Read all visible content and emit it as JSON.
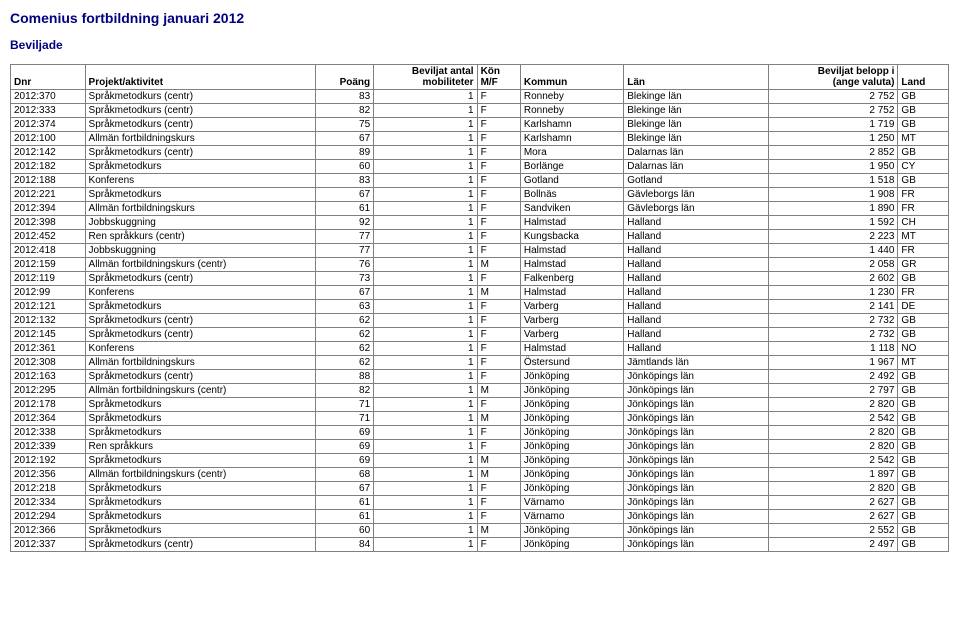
{
  "page_title": "Comenius fortbildning januari 2012",
  "section_title": "Beviljade",
  "columns": [
    {
      "key": "dnr",
      "label": "Dnr",
      "align": "left"
    },
    {
      "key": "proj",
      "label": "Projekt/aktivitet",
      "align": "left"
    },
    {
      "key": "poang",
      "label": "Poäng",
      "align": "right"
    },
    {
      "key": "mob",
      "label": "Beviljat antal\nmobiliteter",
      "align": "right"
    },
    {
      "key": "kon",
      "label": "Kön\nM/F",
      "align": "left"
    },
    {
      "key": "komm",
      "label": "Kommun",
      "align": "left"
    },
    {
      "key": "lan",
      "label": "Län",
      "align": "left"
    },
    {
      "key": "bel",
      "label": "Beviljat belopp i\n(ange valuta)",
      "align": "right"
    },
    {
      "key": "land",
      "label": "Land",
      "align": "left"
    }
  ],
  "rows": [
    [
      "2012:370",
      "Språkmetodkurs (centr)",
      "83",
      "1",
      "F",
      "Ronneby",
      "Blekinge län",
      "2 752",
      "GB"
    ],
    [
      "2012:333",
      "Språkmetodkurs (centr)",
      "82",
      "1",
      "F",
      "Ronneby",
      "Blekinge län",
      "2 752",
      "GB"
    ],
    [
      "2012:374",
      "Språkmetodkurs (centr)",
      "75",
      "1",
      "F",
      "Karlshamn",
      "Blekinge län",
      "1 719",
      "GB"
    ],
    [
      "2012:100",
      "Allmän fortbildningskurs",
      "67",
      "1",
      "F",
      "Karlshamn",
      "Blekinge län",
      "1 250",
      "MT"
    ],
    [
      "2012:142",
      "Språkmetodkurs (centr)",
      "89",
      "1",
      "F",
      "Mora",
      "Dalarnas län",
      "2 852",
      "GB"
    ],
    [
      "2012:182",
      "Språkmetodkurs",
      "60",
      "1",
      "F",
      "Borlänge",
      "Dalarnas län",
      "1 950",
      "CY"
    ],
    [
      "2012:188",
      "Konferens",
      "83",
      "1",
      "F",
      "Gotland",
      "Gotland",
      "1 518",
      "GB"
    ],
    [
      "2012:221",
      "Språkmetodkurs",
      "67",
      "1",
      "F",
      "Bollnäs",
      "Gävleborgs län",
      "1 908",
      "FR"
    ],
    [
      "2012:394",
      "Allmän fortbildningskurs",
      "61",
      "1",
      "F",
      "Sandviken",
      "Gävleborgs län",
      "1 890",
      "FR"
    ],
    [
      "2012:398",
      "Jobbskuggning",
      "92",
      "1",
      "F",
      "Halmstad",
      "Halland",
      "1 592",
      "CH"
    ],
    [
      "2012:452",
      "Ren språkkurs (centr)",
      "77",
      "1",
      "F",
      "Kungsbacka",
      "Halland",
      "2 223",
      "MT"
    ],
    [
      "2012:418",
      "Jobbskuggning",
      "77",
      "1",
      "F",
      "Halmstad",
      "Halland",
      "1 440",
      "FR"
    ],
    [
      "2012:159",
      "Allmän fortbildningskurs (centr)",
      "76",
      "1",
      "M",
      "Halmstad",
      "Halland",
      "2 058",
      "GR"
    ],
    [
      "2012:119",
      "Språkmetodkurs (centr)",
      "73",
      "1",
      "F",
      "Falkenberg",
      "Halland",
      "2 602",
      "GB"
    ],
    [
      "2012:99",
      "Konferens",
      "67",
      "1",
      "M",
      "Halmstad",
      "Halland",
      "1 230",
      "FR"
    ],
    [
      "2012:121",
      "Språkmetodkurs",
      "63",
      "1",
      "F",
      "Varberg",
      "Halland",
      "2 141",
      "DE"
    ],
    [
      "2012:132",
      "Språkmetodkurs (centr)",
      "62",
      "1",
      "F",
      "Varberg",
      "Halland",
      "2 732",
      "GB"
    ],
    [
      "2012:145",
      "Språkmetodkurs (centr)",
      "62",
      "1",
      "F",
      "Varberg",
      "Halland",
      "2 732",
      "GB"
    ],
    [
      "2012:361",
      "Konferens",
      "62",
      "1",
      "F",
      "Halmstad",
      "Halland",
      "1 118",
      "NO"
    ],
    [
      "2012:308",
      "Allmän fortbildningskurs",
      "62",
      "1",
      "F",
      "Östersund",
      "Jämtlands län",
      "1 967",
      "MT"
    ],
    [
      "2012:163",
      "Språkmetodkurs (centr)",
      "88",
      "1",
      "F",
      "Jönköping",
      "Jönköpings län",
      "2 492",
      "GB"
    ],
    [
      "2012:295",
      "Allmän fortbildningskurs (centr)",
      "82",
      "1",
      "M",
      "Jönköping",
      "Jönköpings län",
      "2 797",
      "GB"
    ],
    [
      "2012:178",
      "Språkmetodkurs",
      "71",
      "1",
      "F",
      "Jönköping",
      "Jönköpings län",
      "2 820",
      "GB"
    ],
    [
      "2012:364",
      "Språkmetodkurs",
      "71",
      "1",
      "M",
      "Jönköping",
      "Jönköpings län",
      "2 542",
      "GB"
    ],
    [
      "2012:338",
      "Språkmetodkurs",
      "69",
      "1",
      "F",
      "Jönköping",
      "Jönköpings län",
      "2 820",
      "GB"
    ],
    [
      "2012:339",
      "Ren språkkurs",
      "69",
      "1",
      "F",
      "Jönköping",
      "Jönköpings län",
      "2 820",
      "GB"
    ],
    [
      "2012:192",
      "Språkmetodkurs",
      "69",
      "1",
      "M",
      "Jönköping",
      "Jönköpings län",
      "2 542",
      "GB"
    ],
    [
      "2012:356",
      "Allmän fortbildningskurs (centr)",
      "68",
      "1",
      "M",
      "Jönköping",
      "Jönköpings län",
      "1 897",
      "GB"
    ],
    [
      "2012:218",
      "Språkmetodkurs",
      "67",
      "1",
      "F",
      "Jönköping",
      "Jönköpings län",
      "2 820",
      "GB"
    ],
    [
      "2012:334",
      "Språkmetodkurs",
      "61",
      "1",
      "F",
      "Värnamo",
      "Jönköpings län",
      "2 627",
      "GB"
    ],
    [
      "2012:294",
      "Språkmetodkurs",
      "61",
      "1",
      "F",
      "Värnamo",
      "Jönköpings län",
      "2 627",
      "GB"
    ],
    [
      "2012:366",
      "Språkmetodkurs",
      "60",
      "1",
      "M",
      "Jönköping",
      "Jönköpings län",
      "2 552",
      "GB"
    ],
    [
      "2012:337",
      "Språkmetodkurs (centr)",
      "84",
      "1",
      "F",
      "Jönköping",
      "Jönköpings län",
      "2 497",
      "GB"
    ]
  ],
  "colors": {
    "heading": "#000080",
    "border": "#808080",
    "background": "#ffffff",
    "text": "#000000"
  }
}
